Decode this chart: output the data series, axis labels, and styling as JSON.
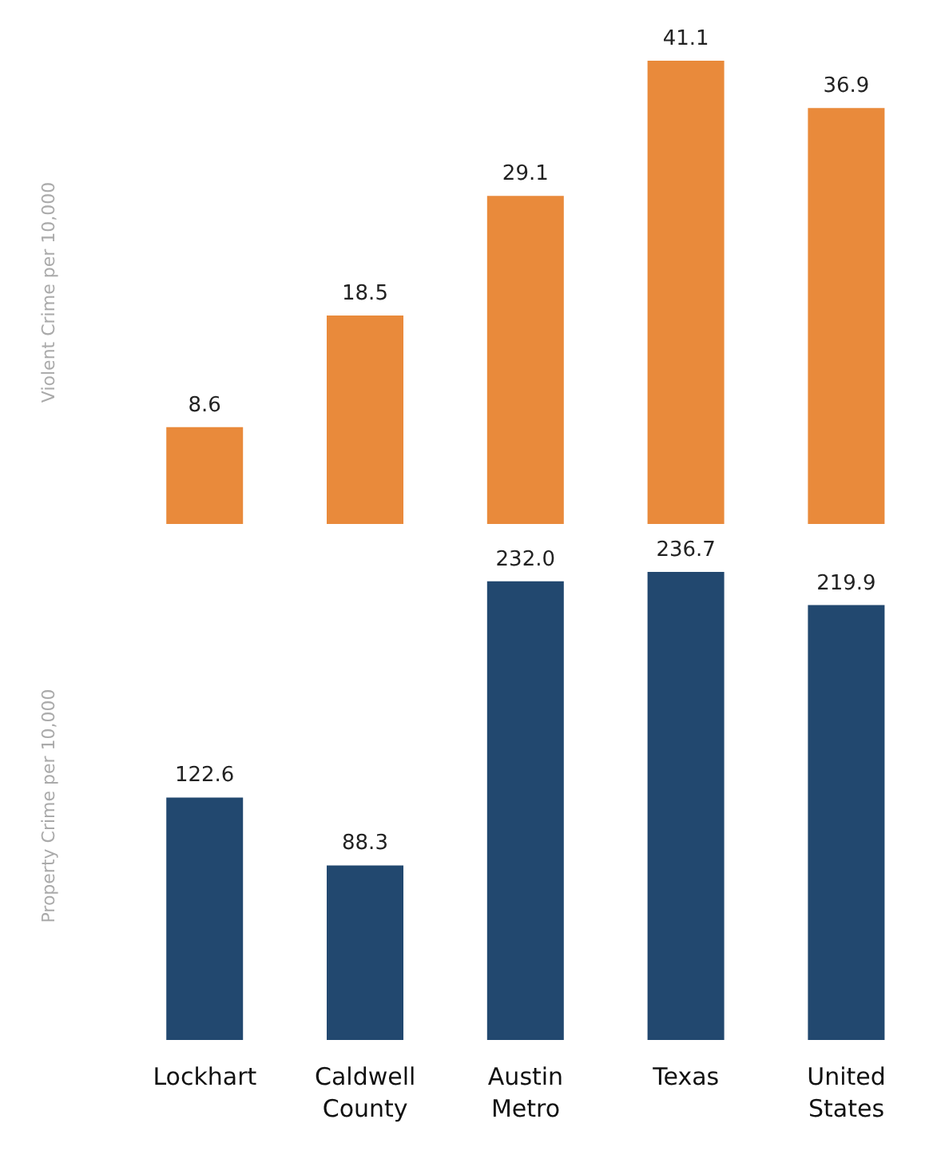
{
  "chart_data": [
    {
      "type": "bar",
      "ylabel": "Violent Crime per 10,000",
      "categories": [
        null,
        null,
        null,
        null,
        null
      ],
      "series": [
        {
          "color": "#e98a3b",
          "values": [
            8.6,
            18.5,
            29.1,
            41.1,
            36.9
          ],
          "value_labels": [
            "8.6",
            "18.5",
            "29.1",
            "41.1",
            "36.9"
          ]
        }
      ],
      "grid": false,
      "legend": false,
      "tick_labels": false
    },
    {
      "type": "bar",
      "ylabel": "Property Crime per 10,000",
      "categories": [
        "Lockhart",
        "Caldwell County",
        "Austin Metro",
        "Texas",
        "United States"
      ],
      "series": [
        {
          "color": "#22486f",
          "values": [
            122.6,
            88.3,
            232.0,
            236.7,
            219.9
          ],
          "value_labels": [
            "122.6",
            "88.3",
            "232.0",
            "236.7",
            "219.9"
          ]
        }
      ],
      "grid": false,
      "legend": false,
      "tick_labels": "x"
    }
  ]
}
